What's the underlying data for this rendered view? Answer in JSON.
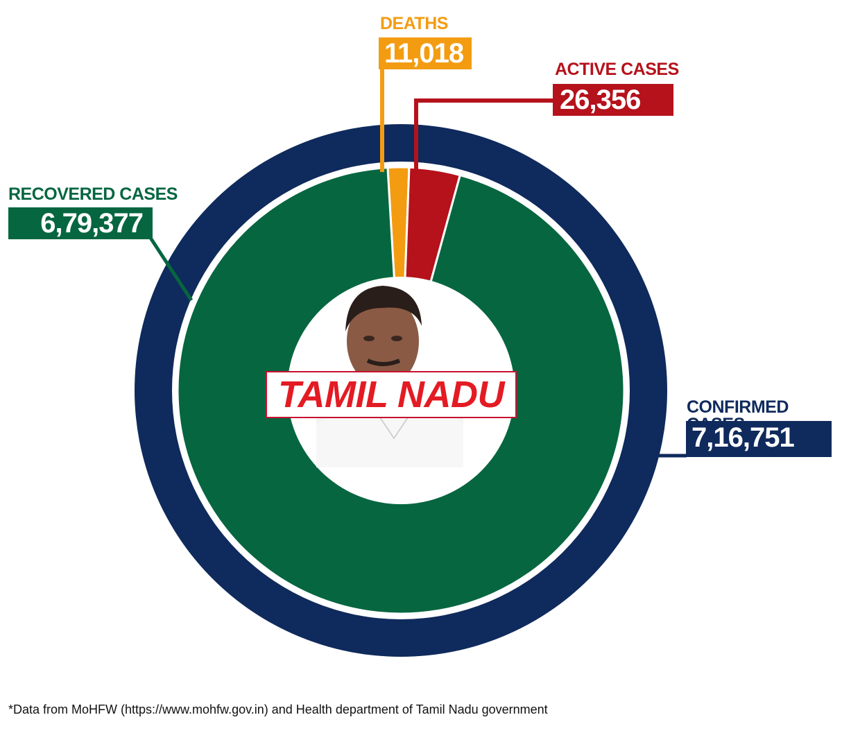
{
  "chart_data": {
    "type": "pie",
    "center_label": "TAMIL NADU",
    "outer_ring": {
      "label": "CONFIRMED CASES",
      "value_text": "7,16,751",
      "value": 716751,
      "color": "#0f2a5c"
    },
    "slices": [
      {
        "label": "RECOVERED CASES",
        "value_text": "6,79,377",
        "value": 679377,
        "color": "#066640"
      },
      {
        "label": "DEATHS",
        "value_text": "11,018",
        "value": 11018,
        "color": "#f39c12"
      },
      {
        "label": "ACTIVE CASES",
        "value_text": "26,356",
        "value": 26356,
        "color": "#b5121b"
      }
    ]
  },
  "footnote": "*Data from MoHFW (https://www.mohfw.gov.in) and Health department of Tamil Nadu government"
}
